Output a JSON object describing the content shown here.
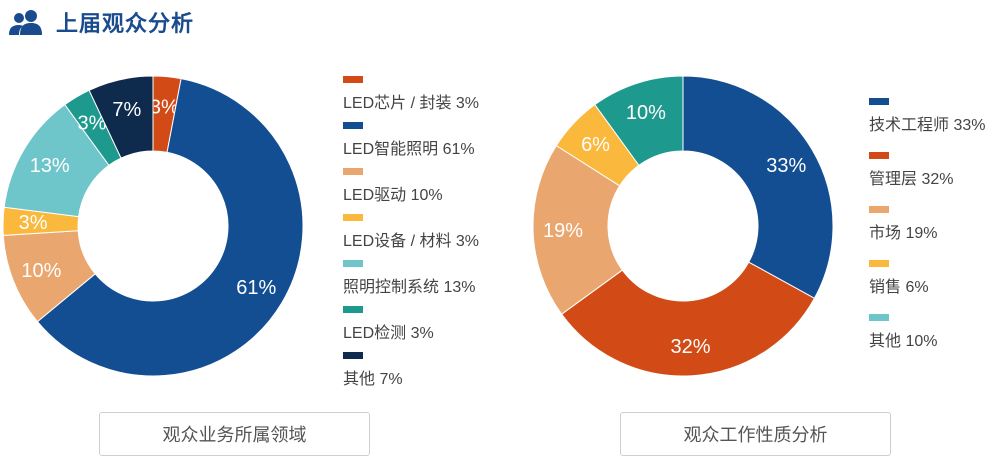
{
  "header": {
    "title": "上届观众分析",
    "icon": "users-icon"
  },
  "chart_data": [
    {
      "type": "pie",
      "donut": true,
      "caption": "观众业务所属领域",
      "legend_position": "right",
      "slices": [
        {
          "label": "LED芯片 / 封装",
          "value": 3,
          "color": "#d24a16",
          "legend": "LED芯片 / 封装 3%",
          "pct": "3%"
        },
        {
          "label": "LED智能照明",
          "value": 61,
          "color": "#134e92",
          "legend": "LED智能照明 61%",
          "pct": "61%"
        },
        {
          "label": "LED驱动",
          "value": 10,
          "color": "#e9a66e",
          "legend": "LED驱动 10%",
          "pct": "10%"
        },
        {
          "label": "LED设备 / 材料",
          "value": 3,
          "color": "#fab83c",
          "legend": "LED设备 / 材料 3%",
          "pct": "3%"
        },
        {
          "label": "照明控制系统",
          "value": 13,
          "color": "#6ec5ca",
          "legend": "照明控制系统 13%",
          "pct": "13%"
        },
        {
          "label": "LED检测",
          "value": 3,
          "color": "#1d9a8d",
          "legend": "LED检测 3%",
          "pct": "3%"
        },
        {
          "label": "其他",
          "value": 7,
          "color": "#0e2a4d",
          "legend": "其他 7%",
          "pct": "7%"
        }
      ]
    },
    {
      "type": "pie",
      "donut": true,
      "caption": "观众工作性质分析",
      "legend_position": "right",
      "slices": [
        {
          "label": "技术工程师",
          "value": 33,
          "color": "#134e92",
          "legend": "技术工程师 33%",
          "pct": "33%"
        },
        {
          "label": "管理层",
          "value": 32,
          "color": "#d24a16",
          "legend": "管理层 32%",
          "pct": "32%"
        },
        {
          "label": "市场",
          "value": 19,
          "color": "#e9a66e",
          "legend": "市场 19%",
          "pct": "19%"
        },
        {
          "label": "销售",
          "value": 6,
          "color": "#fab83c",
          "legend": "销售 6%",
          "pct": "6%"
        },
        {
          "label": "其他",
          "value": 10,
          "color": "#1d9a8d",
          "legend": "其他 10%",
          "pct": "10%"
        }
      ],
      "legend_colors": [
        "#134e92",
        "#d24a16",
        "#e9a66e",
        "#fab83c",
        "#6ec5ca"
      ]
    }
  ]
}
